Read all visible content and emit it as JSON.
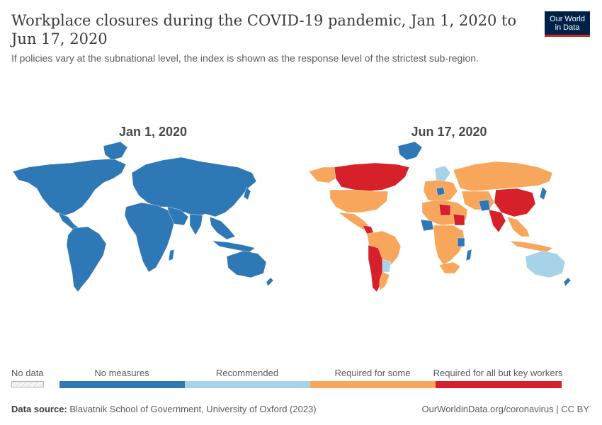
{
  "header": {
    "title": "Workplace closures during the COVID-19 pandemic, Jan 1, 2020 to Jun 17, 2020",
    "subtitle": "If policies vary at the subnational level, the index is shown as the response level of the strictest sub-region.",
    "logo_line1": "Our World",
    "logo_line2": "in Data"
  },
  "maps": {
    "left_title": "Jan 1, 2020",
    "right_title": "Jun 17, 2020"
  },
  "legend": {
    "no_data_label": "No data",
    "categories": [
      {
        "label": "No measures",
        "color": "#2f78b6"
      },
      {
        "label": "Recommended",
        "color": "#a6d3e8"
      },
      {
        "label": "Required for some",
        "color": "#f7a65b"
      },
      {
        "label": "Required for all but key workers",
        "color": "#d6202a"
      }
    ]
  },
  "footer": {
    "source_label": "Data source:",
    "source_text": "Blavatnik School of Government, University of Oxford (2023)",
    "credit": "OurWorldinData.org/coronavirus | CC BY"
  },
  "colors": {
    "no_measures": "#2f78b6",
    "recommended": "#a6d3e8",
    "required_some": "#f7a65b",
    "required_all": "#d6202a",
    "border": "#ffffff"
  }
}
